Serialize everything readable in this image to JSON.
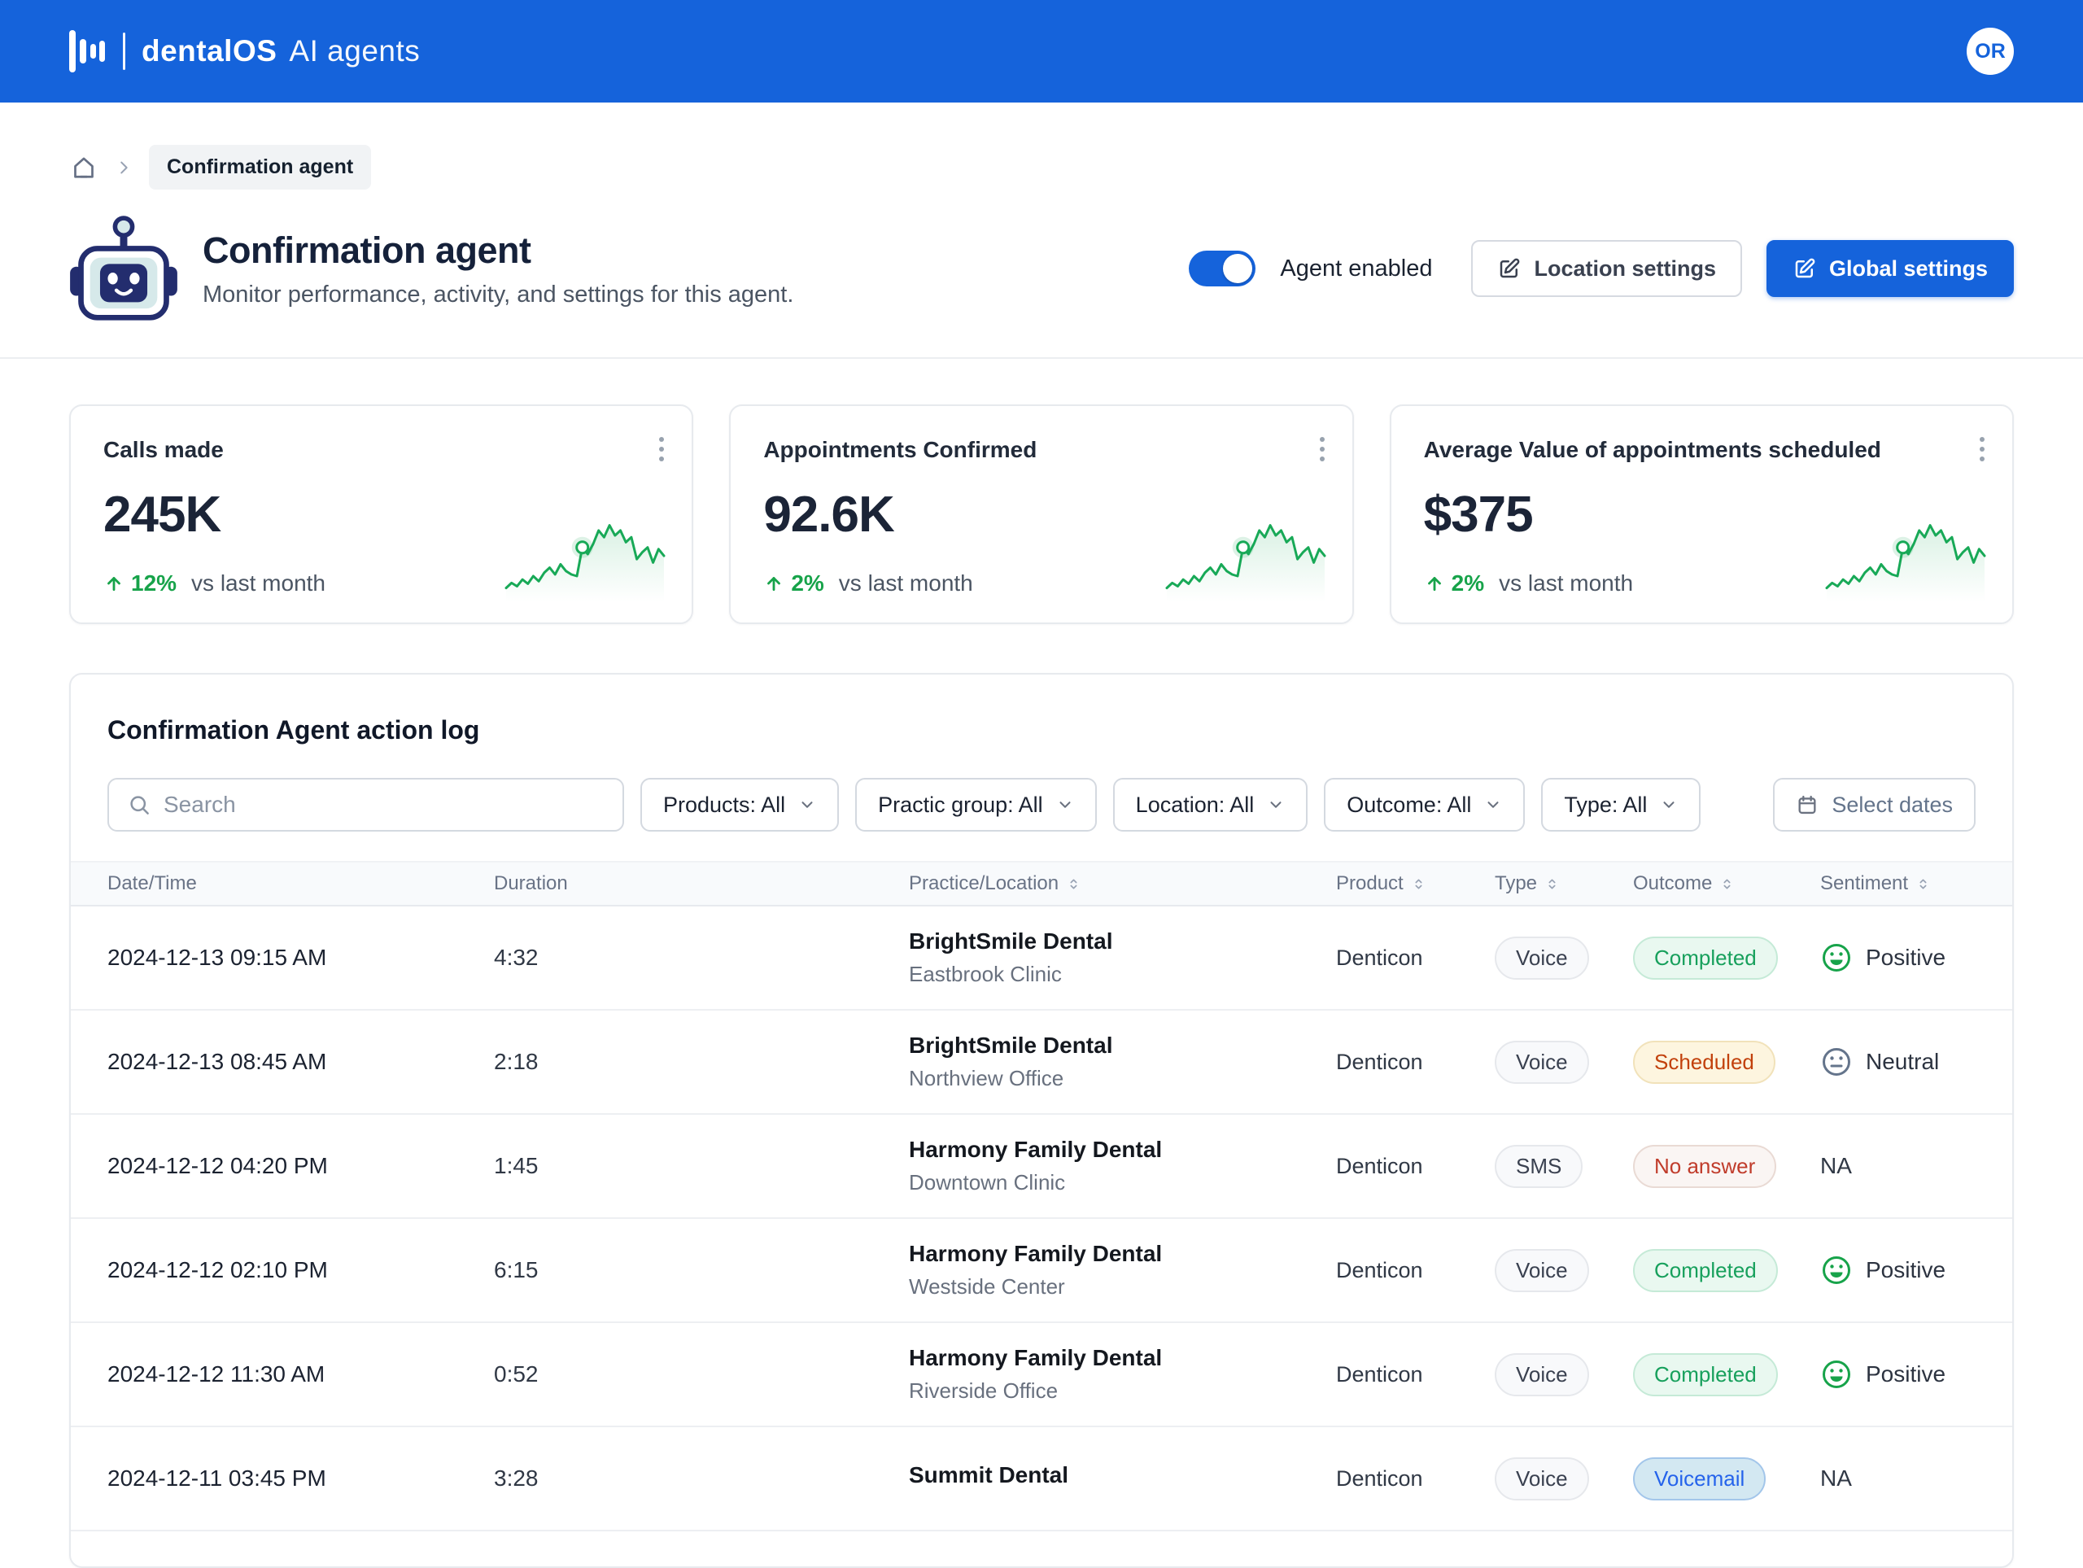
{
  "colors": {
    "brand": "#1563db",
    "green": "#17a34a",
    "navy": "#1b2437"
  },
  "brand": {
    "product": "dentalOS",
    "suffix": "AI agents",
    "avatar_initials": "OR"
  },
  "breadcrumb": {
    "current": "Confirmation agent"
  },
  "page": {
    "title": "Confirmation agent",
    "subtitle": "Monitor performance, activity, and settings for this agent.",
    "toggle_label": "Agent enabled",
    "location_settings_label": "Location settings",
    "global_settings_label": "Global settings"
  },
  "stats": [
    {
      "title": "Calls made",
      "value": "245K",
      "delta": "12%",
      "delta_suffix": "vs last month"
    },
    {
      "title": "Appointments Confirmed",
      "value": "92.6K",
      "delta": "2%",
      "delta_suffix": "vs last month"
    },
    {
      "title": "Average Value of appointments scheduled",
      "value": "$375",
      "delta": "2%",
      "delta_suffix": "vs last month"
    }
  ],
  "sparkline": {
    "color": "#18a957",
    "marker_index": 14,
    "points": [
      10,
      16,
      12,
      20,
      15,
      24,
      18,
      28,
      34,
      26,
      38,
      30,
      26,
      24,
      58,
      50,
      62,
      78,
      70,
      84,
      72,
      78,
      64,
      70,
      44,
      52,
      58,
      40,
      56,
      48
    ]
  },
  "action_log": {
    "title": "Confirmation Agent action log",
    "search_placeholder": "Search",
    "filters": [
      {
        "label": "Products: All"
      },
      {
        "label": "Practic group: All"
      },
      {
        "label": "Location: All"
      },
      {
        "label": "Outcome: All"
      },
      {
        "label": "Type: All"
      }
    ],
    "date_filter_label": "Select dates",
    "columns": [
      {
        "label": "Date/Time"
      },
      {
        "label": "Duration"
      },
      {
        "label": "Practice/Location"
      },
      {
        "label": "Product"
      },
      {
        "label": "Type"
      },
      {
        "label": "Outcome"
      },
      {
        "label": "Sentiment"
      }
    ],
    "rows": [
      {
        "datetime": "2024-12-13 09:15 AM",
        "duration": "4:32",
        "practice": "BrightSmile Dental",
        "location": "Eastbrook Clinic",
        "product": "Denticon",
        "type": "Voice",
        "outcome": "Completed",
        "sentiment": "Positive"
      },
      {
        "datetime": "2024-12-13 08:45 AM",
        "duration": "2:18",
        "practice": "BrightSmile Dental",
        "location": "Northview Office",
        "product": "Denticon",
        "type": "Voice",
        "outcome": "Scheduled",
        "sentiment": "Neutral"
      },
      {
        "datetime": "2024-12-12 04:20 PM",
        "duration": "1:45",
        "practice": "Harmony Family Dental",
        "location": "Downtown Clinic",
        "product": "Denticon",
        "type": "SMS",
        "outcome": "No answer",
        "sentiment": "NA"
      },
      {
        "datetime": "2024-12-12 02:10 PM",
        "duration": "6:15",
        "practice": "Harmony Family Dental",
        "location": "Westside Center",
        "product": "Denticon",
        "type": "Voice",
        "outcome": "Completed",
        "sentiment": "Positive"
      },
      {
        "datetime": "2024-12-12 11:30 AM",
        "duration": "0:52",
        "practice": "Harmony Family Dental",
        "location": "Riverside Office",
        "product": "Denticon",
        "type": "Voice",
        "outcome": "Completed",
        "sentiment": "Positive"
      },
      {
        "datetime": "2024-12-11 03:45 PM",
        "duration": "3:28",
        "practice": "Summit Dental",
        "location": "",
        "product": "Denticon",
        "type": "Voice",
        "outcome": "Voicemail",
        "sentiment": "NA"
      }
    ]
  }
}
